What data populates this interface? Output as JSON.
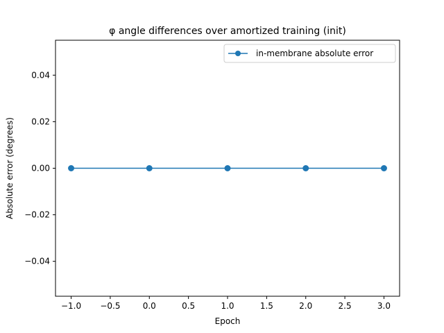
{
  "chart_data": {
    "type": "line",
    "title": "φ angle differences over amortized training (init)",
    "xlabel": "Epoch",
    "ylabel": "Absolute error (degrees)",
    "xlim": [
      -1.2,
      3.2
    ],
    "ylim": [
      -0.055,
      0.055
    ],
    "x_ticks": [
      -1.0,
      -0.5,
      0.0,
      0.5,
      1.0,
      1.5,
      2.0,
      2.5,
      3.0
    ],
    "x_tick_labels": [
      "−1.0",
      "−0.5",
      "0.0",
      "0.5",
      "1.0",
      "1.5",
      "2.0",
      "2.5",
      "3.0"
    ],
    "y_ticks": [
      -0.04,
      -0.02,
      0.0,
      0.02,
      0.04
    ],
    "y_tick_labels": [
      "−0.04",
      "−0.02",
      "0.00",
      "0.02",
      "0.04"
    ],
    "grid": false,
    "legend_position": "top-right",
    "series": [
      {
        "name": "in-membrane absolute error",
        "color": "#1f77b4",
        "marker": "circle",
        "x": [
          -1,
          0,
          1,
          2,
          3
        ],
        "y": [
          0.0,
          0.0,
          0.0,
          0.0,
          0.0
        ]
      }
    ]
  }
}
